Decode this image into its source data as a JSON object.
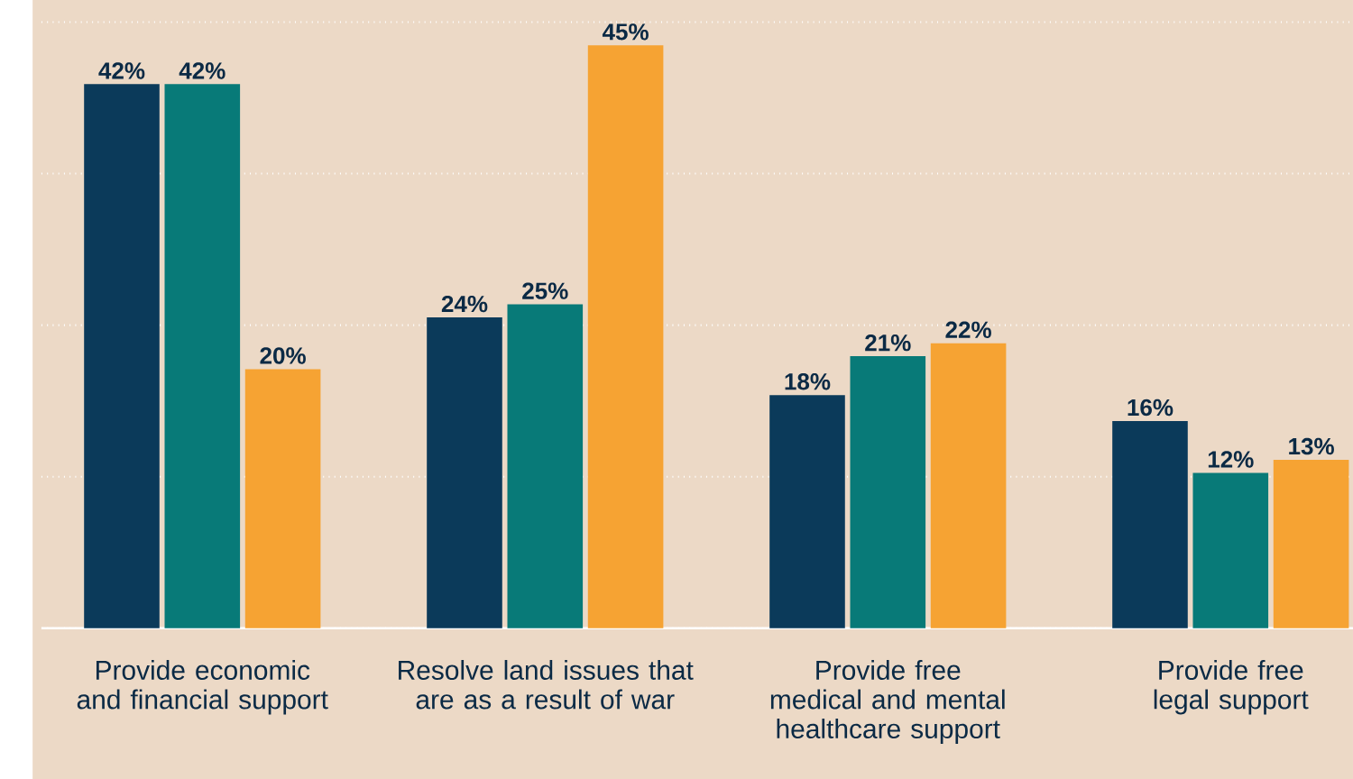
{
  "chart_data": {
    "type": "bar",
    "categories": [
      "Provide economic and financial support",
      "Resolve land issues that are as a result of war",
      "Provide free medical and mental healthcare support",
      "Provide free legal support"
    ],
    "series": [
      {
        "color": "#0b3a5a",
        "values": [
          42,
          24,
          18,
          16
        ],
        "value_labels": [
          "42%",
          "24%",
          "18%",
          "16%"
        ]
      },
      {
        "color": "#087a78",
        "values": [
          42,
          25,
          21,
          12
        ],
        "value_labels": [
          "42%",
          "25%",
          "21%",
          "12%"
        ]
      },
      {
        "color": "#f6a333",
        "values": [
          20,
          45,
          22,
          13
        ],
        "value_labels": [
          "20%",
          "45%",
          "22%",
          "13%"
        ]
      }
    ],
    "ylim": [
      0,
      48.5
    ],
    "grid": "y",
    "tick_labels": "x"
  }
}
